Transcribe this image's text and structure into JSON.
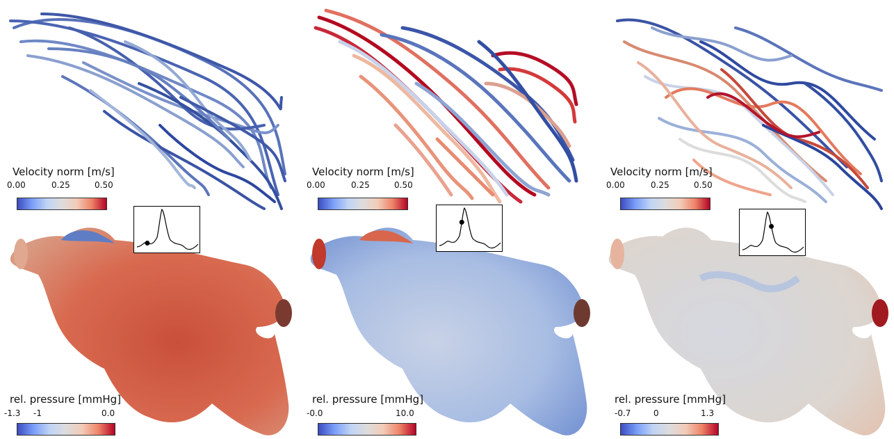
{
  "panels": [
    {
      "velocity": {
        "title": "Velocity norm [m/s]",
        "ticks": [
          "0.00",
          "0.25",
          "0.50"
        ]
      },
      "pressure": {
        "title": "rel. pressure [mmHg]",
        "ticks": [
          "-1.3",
          "-1",
          "0.0"
        ]
      },
      "waveform_marker_fraction": 0.1
    },
    {
      "velocity": {
        "title": "Velocity norm [m/s]",
        "ticks": [
          "0.00",
          "0.25",
          "0.50"
        ]
      },
      "pressure": {
        "title": "rel. pressure [mmHg]",
        "ticks": [
          "-0.0",
          "10.0"
        ]
      },
      "waveform_marker_fraction": 0.33
    },
    {
      "velocity": {
        "title": "Velocity norm [m/s]",
        "ticks": [
          "0.00",
          "0.25",
          "0.50"
        ]
      },
      "pressure": {
        "title": "rel. pressure [mmHg]",
        "ticks": [
          "-0.7",
          "0",
          "1.3"
        ]
      },
      "waveform_marker_fraction": 0.58
    }
  ],
  "colors": {
    "cool": "#3b4cc0",
    "neutral": "#dddcdc",
    "warm": "#b40426",
    "surface_p0": "#d8614a",
    "surface_p1": "#b9c6e0",
    "surface_p2": "#d9d6d4"
  }
}
